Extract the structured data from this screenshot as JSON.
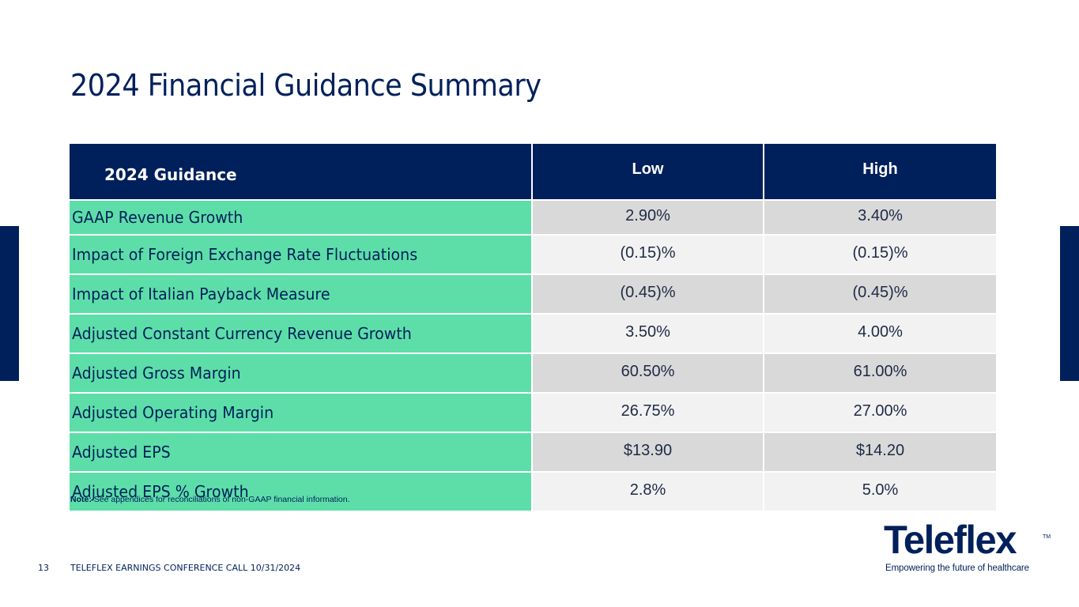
{
  "slide": {
    "title": "2024 Financial Guidance Summary",
    "accent_navy": "#00205b",
    "accent_green": "#5ddea8"
  },
  "table": {
    "headers": [
      "2024 Guidance",
      "Low",
      "High"
    ],
    "rows": [
      {
        "metric": "GAAP Revenue Growth",
        "low": "2.90%",
        "high": "3.40%"
      },
      {
        "metric": "Impact of Foreign Exchange Rate Fluctuations",
        "low": "(0.15)%",
        "high": "(0.15)%"
      },
      {
        "metric": "Impact of Italian Payback Measure",
        "low": "(0.45)%",
        "high": "(0.45)%"
      },
      {
        "metric": "Adjusted Constant Currency Revenue Growth",
        "low": "3.50%",
        "high": "4.00%"
      },
      {
        "metric": "Adjusted Gross Margin",
        "low": "60.50%",
        "high": "61.00%"
      },
      {
        "metric": "Adjusted Operating Margin",
        "low": "26.75%",
        "high": "27.00%"
      },
      {
        "metric": "Adjusted EPS",
        "low": "$13.90",
        "high": "$14.20"
      },
      {
        "metric": "Adjusted EPS % Growth",
        "low": "2.8%",
        "high": "5.0%"
      }
    ]
  },
  "note": {
    "label": "Note:",
    "text": " See appendices for reconciliations of non-GAAP financial information."
  },
  "footer": {
    "page_number": "13",
    "text": "TELEFLEX EARNINGS CONFERENCE CALL 10/31/2024"
  },
  "logo": {
    "wordmark": "Teleflex",
    "trademark": "TM",
    "tagline": "Empowering the future of healthcare"
  }
}
